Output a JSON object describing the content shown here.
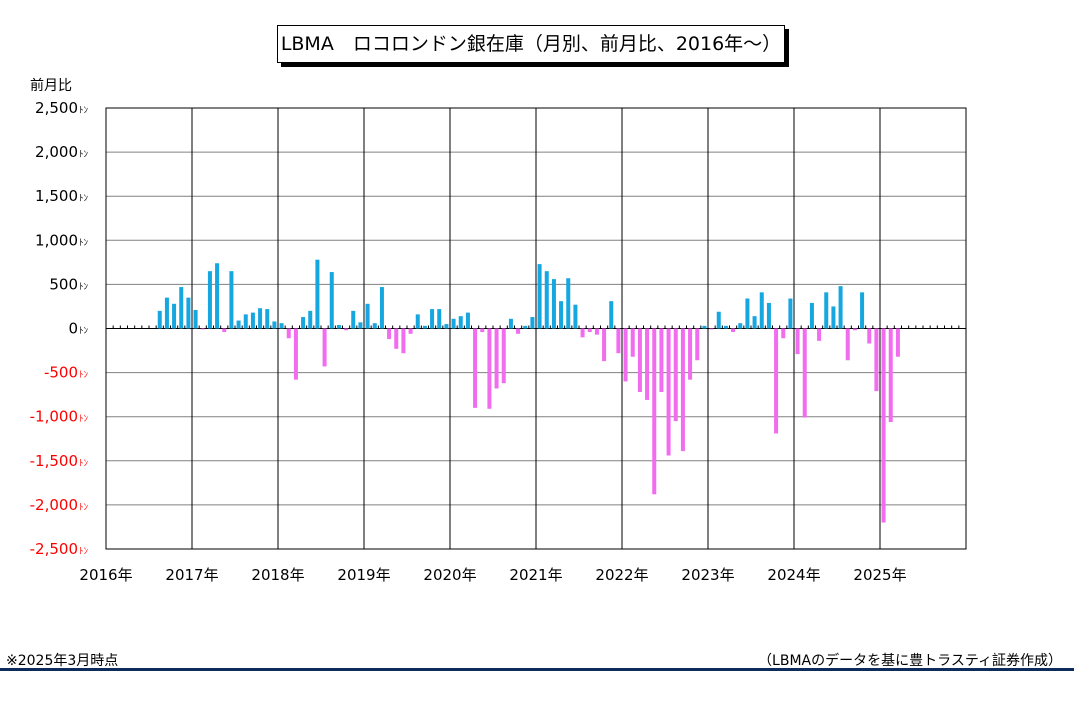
{
  "title": "LBMA　ロコロンドン銀在庫（月別、前月比、2016年～）",
  "footnote": "※2025年3月時点",
  "source": "（LBMAのデータを基に豊トラスティ証券作成）",
  "chart_data": {
    "type": "bar",
    "title": "LBMA　ロコロンドン銀在庫（月別、前月比、2016年～）",
    "ylabel": "前月比",
    "yticks": [
      "2,500ﾄﾝ",
      "2,000ﾄﾝ",
      "1,500ﾄﾝ",
      "1,000ﾄﾝ",
      "500ﾄﾝ",
      "0ﾄﾝ",
      "-500ﾄﾝ",
      "-1,000ﾄﾝ",
      "-1,500ﾄﾝ",
      "-2,000ﾄﾝ",
      "-2,500ﾄﾝ"
    ],
    "xticks": [
      "2016年",
      "2017年",
      "2018年",
      "2019年",
      "2020年",
      "2021年",
      "2022年",
      "2023年",
      "2024年",
      "2025年"
    ],
    "ylim": [
      -2500,
      2500
    ],
    "grid": true,
    "colors": {
      "positive": "#16a6e0",
      "negative": "#f26cf0",
      "negative_tick": "#ff0000"
    },
    "start": "2016-01",
    "values": [
      0,
      0,
      0,
      0,
      0,
      0,
      0,
      200,
      350,
      280,
      470,
      350,
      210,
      -10,
      650,
      740,
      -40,
      650,
      90,
      160,
      180,
      230,
      220,
      80,
      60,
      -110,
      -580,
      130,
      200,
      780,
      -430,
      640,
      40,
      -20,
      200,
      70,
      280,
      60,
      470,
      -120,
      -230,
      -280,
      -60,
      160,
      30,
      220,
      220,
      50,
      110,
      140,
      180,
      -900,
      -40,
      -910,
      -680,
      -620,
      110,
      -60,
      30,
      130,
      730,
      650,
      560,
      310,
      570,
      270,
      -100,
      -40,
      -70,
      -370,
      310,
      -280,
      -600,
      -320,
      -720,
      -810,
      -1880,
      -720,
      -1440,
      -1050,
      -1390,
      -580,
      -360,
      30,
      -10,
      190,
      30,
      -40,
      60,
      340,
      140,
      410,
      290,
      -1190,
      -110,
      340,
      -290,
      -1010,
      290,
      -140,
      410,
      250,
      480,
      -360,
      -20,
      410,
      -170,
      -710,
      -2200,
      -1060,
      -320,
      0,
      0,
      0,
      0,
      0,
      0,
      0,
      0,
      0
    ]
  }
}
